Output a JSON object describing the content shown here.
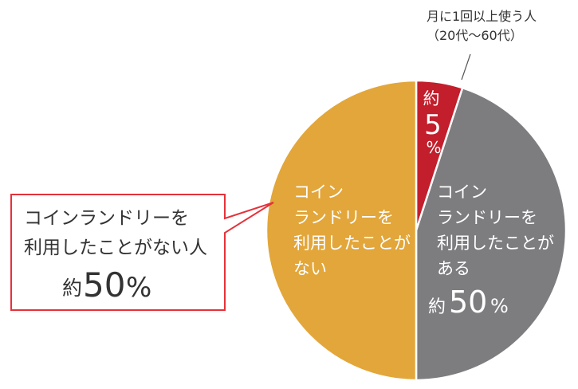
{
  "chart_data": {
    "type": "pie",
    "slices": [
      {
        "label": "コイン ランドリーを 利用したことが ない",
        "value_label": "",
        "value": 50,
        "color": "#E2A63A",
        "lines": [
          "コイン",
          "ランドリーを",
          "利用したことが",
          "ない"
        ]
      },
      {
        "label": "コイン ランドリーを 利用したことが ある",
        "value_label": "約50%",
        "value": 45,
        "color": "#7D7D80",
        "lines": [
          "コイン",
          "ランドリーを",
          "利用したことが",
          "ある"
        ]
      },
      {
        "label": "約5%",
        "value_label": "約5%",
        "value": 5,
        "color": "#C21E2C",
        "lines": [
          "約",
          "5",
          "%"
        ]
      }
    ],
    "callout_top": {
      "lines": [
        "月に1回以上使う人",
        "（20代～60代）"
      ]
    },
    "callout_left": {
      "lines": [
        "コインランドリーを",
        "利用したことがない人"
      ],
      "prefix": "約",
      "value": "50%"
    },
    "colors": {
      "border": "#E5323A",
      "white": "#ffffff",
      "text": "#333333"
    }
  }
}
